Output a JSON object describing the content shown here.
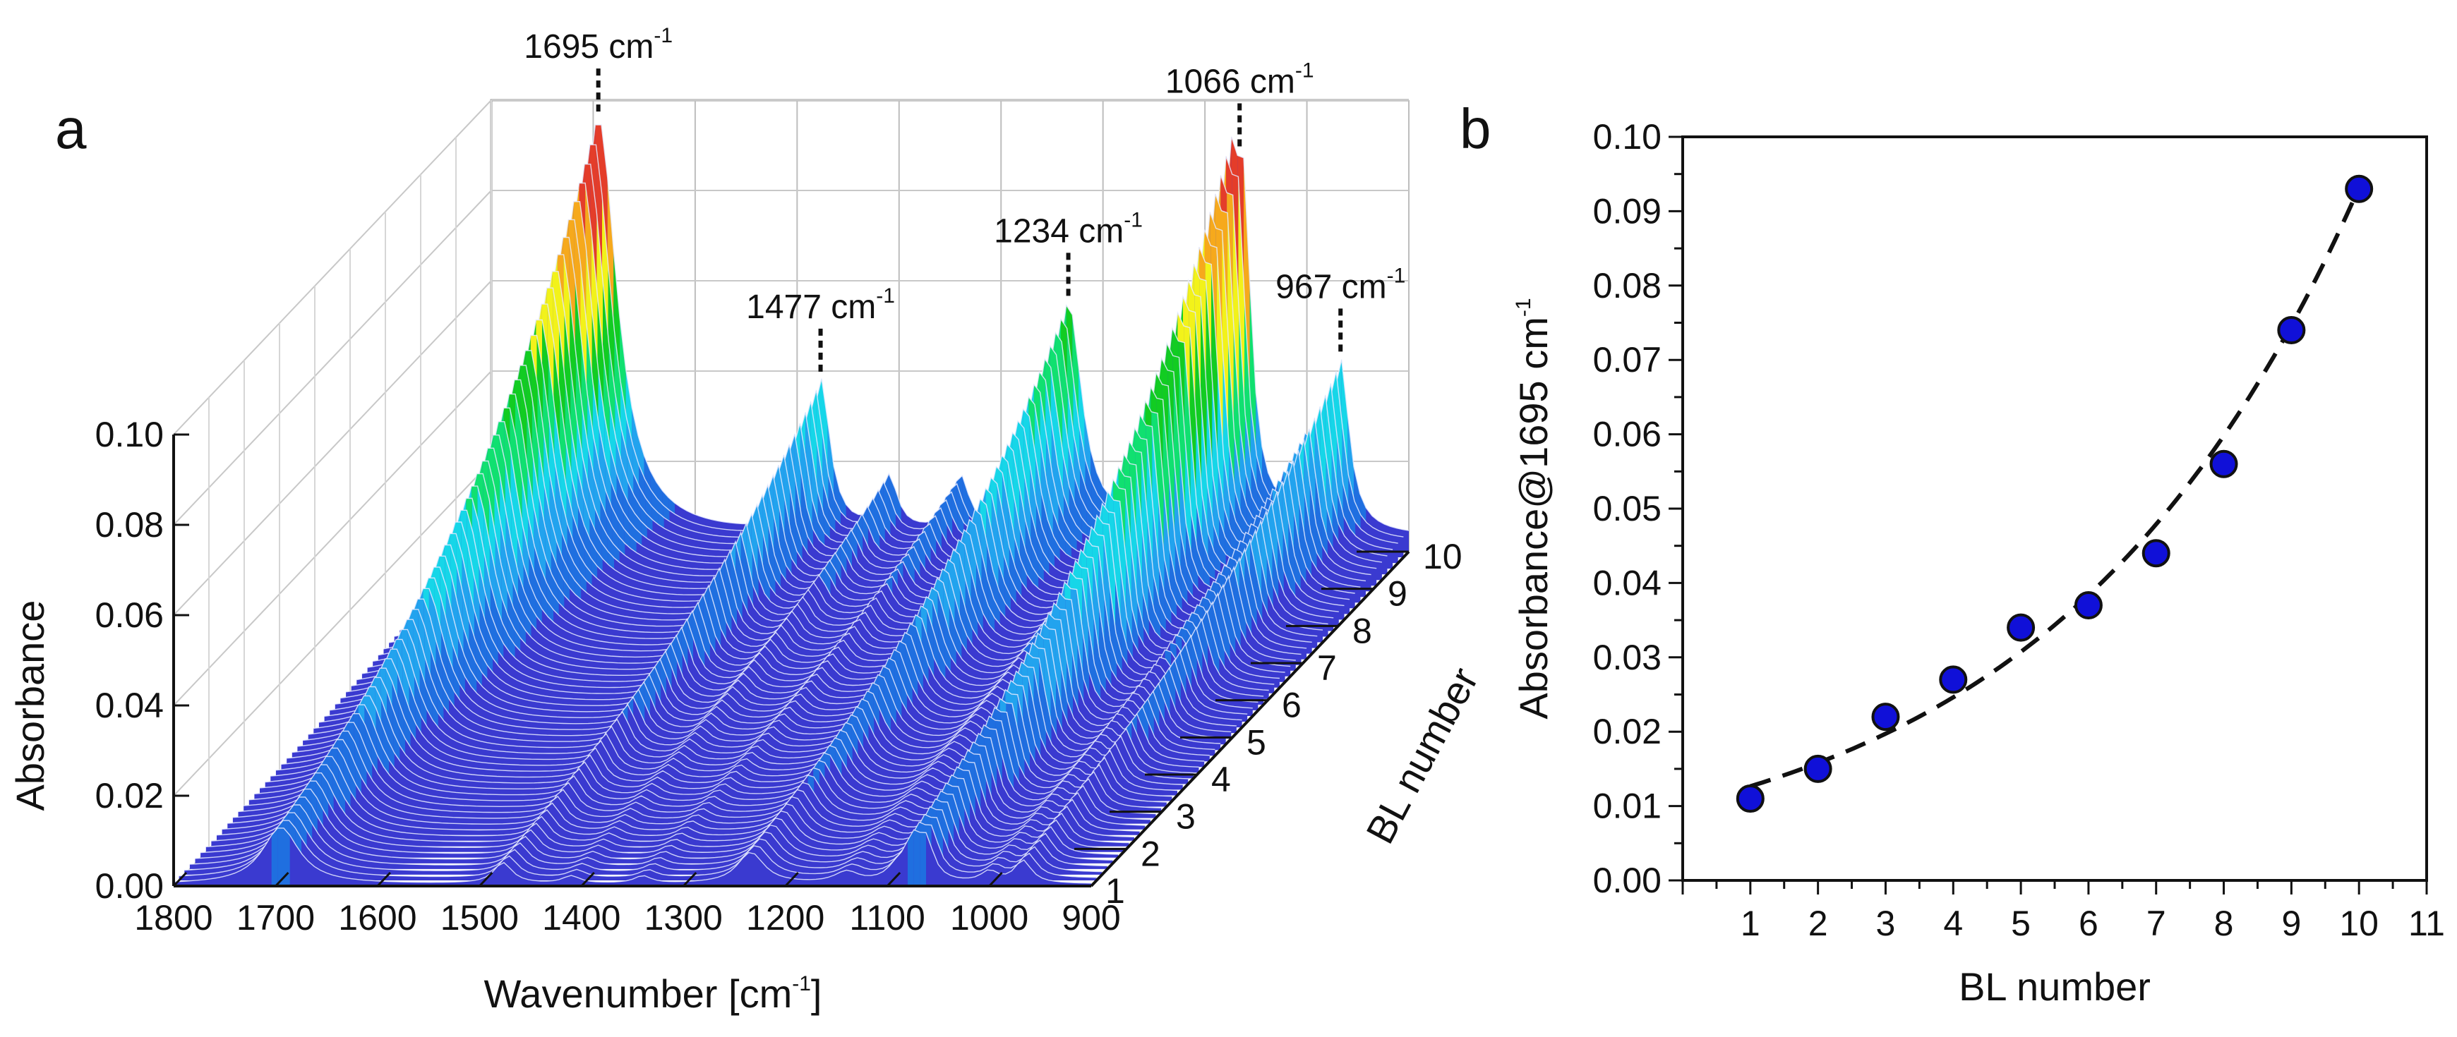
{
  "chart_data": [
    {
      "panel": "a",
      "type": "waterfall-3d-surface",
      "title": "",
      "xlabel": "Wavenumber [cm",
      "xlabel_sup": "-1",
      "xlabel_close": "]",
      "ylabel": "Absorbance",
      "zlabel": "BL number",
      "x_ticks": [
        "1800",
        "1700",
        "1600",
        "1500",
        "1400",
        "1300",
        "1200",
        "1100",
        "1000",
        "900"
      ],
      "y_ticks": [
        "0.00",
        "0.02",
        "0.04",
        "0.06",
        "0.08",
        "0.10"
      ],
      "z_ticks": [
        "1",
        "2",
        "3",
        "4",
        "5",
        "6",
        "7",
        "8",
        "9",
        "10"
      ],
      "xlim": [
        1800,
        900
      ],
      "ylim": [
        0,
        0.1
      ],
      "zlim": [
        1,
        10
      ],
      "max_absorbance_back": 0.093,
      "bands": [
        {
          "center": 1695,
          "width": 22,
          "height": 0.093
        },
        {
          "center": 1477,
          "width": 11,
          "height": 0.034
        },
        {
          "center": 1234,
          "width": 16,
          "height": 0.051
        },
        {
          "center": 1090,
          "width": 12,
          "height": 0.022
        },
        {
          "center": 1075,
          "width": 9,
          "height": 0.058
        },
        {
          "center": 1062,
          "width": 9,
          "height": 0.06
        },
        {
          "center": 1000,
          "width": 10,
          "height": 0.018
        },
        {
          "center": 967,
          "width": 10,
          "height": 0.037
        },
        {
          "center": 1410,
          "width": 10,
          "height": 0.012
        },
        {
          "center": 1340,
          "width": 10,
          "height": 0.012
        },
        {
          "center": 1140,
          "width": 14,
          "height": 0.018
        }
      ],
      "annotations": [
        {
          "text": "1695 cm",
          "sup": "-1",
          "wavenumber": 1695
        },
        {
          "text": "1477 cm",
          "sup": "-1",
          "wavenumber": 1477
        },
        {
          "text": "1234 cm",
          "sup": "-1",
          "wavenumber": 1234
        },
        {
          "text": "1066 cm",
          "sup": "-1",
          "wavenumber": 1066
        },
        {
          "text": "967 cm",
          "sup": "-1",
          "wavenumber": 967
        }
      ],
      "colormap": [
        "#3b3bd6",
        "#1f6fe0",
        "#22a3ee",
        "#16d6e8",
        "#10e070",
        "#12cc22",
        "#f2f21a",
        "#f6a91c",
        "#e43d2a"
      ]
    },
    {
      "panel": "b",
      "type": "scatter",
      "title": "",
      "xlabel": "BL number",
      "ylabel": "Absorbance@1695 cm",
      "ylabel_sup": "-1",
      "x": [
        1,
        2,
        3,
        4,
        5,
        6,
        7,
        8,
        9,
        10
      ],
      "y": [
        0.011,
        0.015,
        0.022,
        0.027,
        0.034,
        0.037,
        0.044,
        0.056,
        0.074,
        0.093
      ],
      "fit": {
        "type": "exponential",
        "a": 0.01014,
        "b": 0.2218,
        "style": "dashed",
        "x_range": [
          1,
          10
        ]
      },
      "xlim": [
        0,
        11
      ],
      "ylim": [
        0,
        0.1
      ],
      "x_ticks": [
        "1",
        "2",
        "3",
        "4",
        "5",
        "6",
        "7",
        "8",
        "9",
        "10",
        "11"
      ],
      "y_ticks": [
        "0.00",
        "0.01",
        "0.02",
        "0.03",
        "0.04",
        "0.05",
        "0.06",
        "0.07",
        "0.08",
        "0.09",
        "0.10"
      ],
      "marker_color": "#1010d8",
      "marker_edge": "#111111"
    }
  ]
}
